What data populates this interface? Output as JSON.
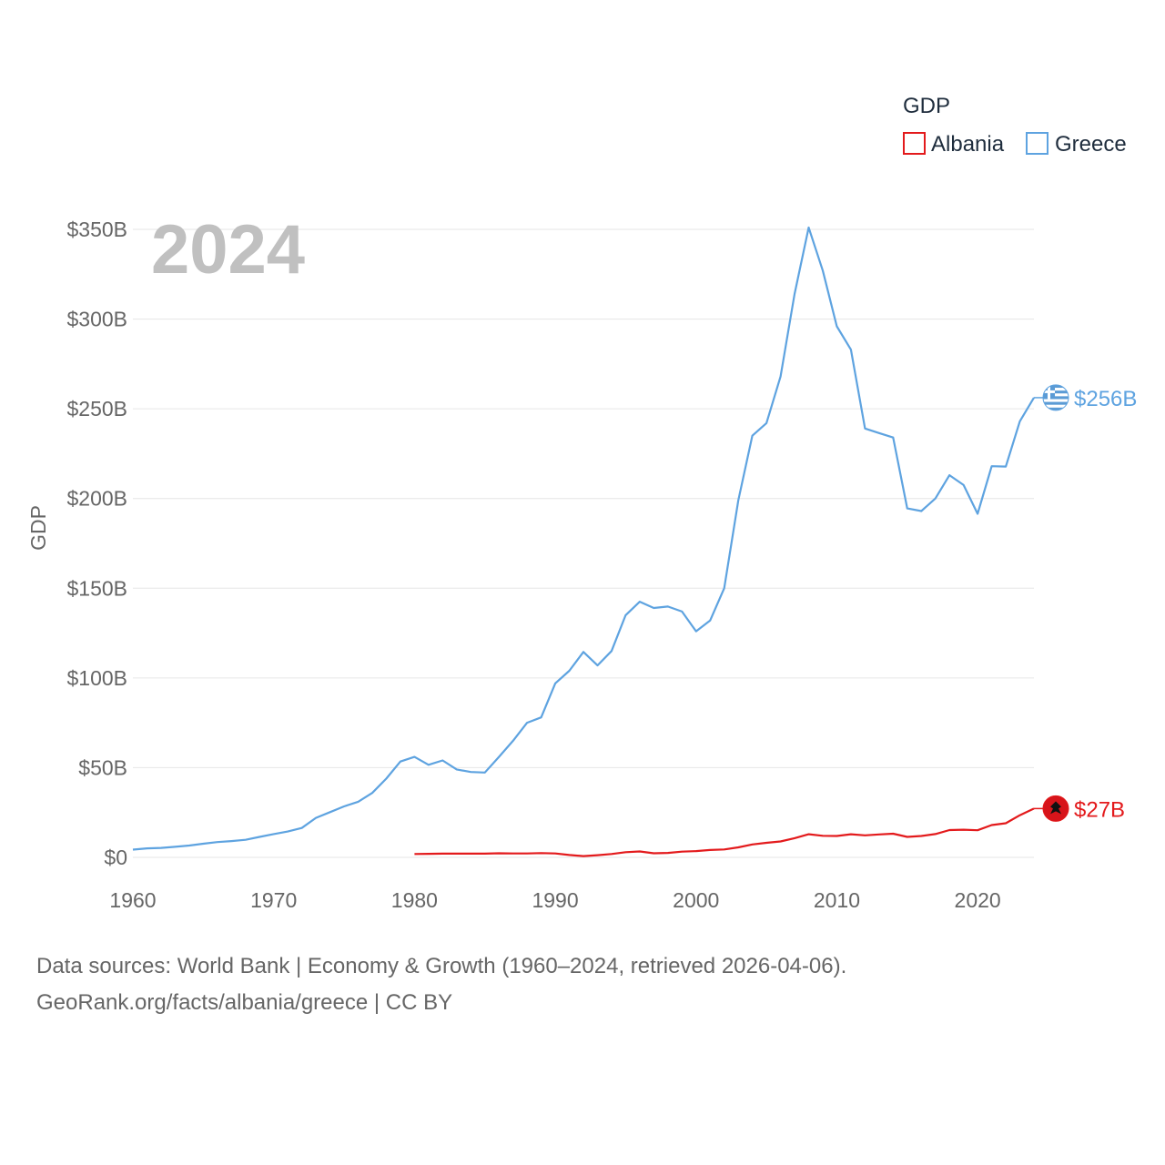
{
  "chart_data": {
    "type": "line",
    "title": "",
    "year_badge": "2024",
    "xlabel": "",
    "ylabel": "GDP",
    "xlim": [
      1960,
      2024
    ],
    "ylim": [
      0,
      350
    ],
    "x_ticks": [
      1960,
      1970,
      1980,
      1990,
      2000,
      2010,
      2020
    ],
    "y_ticks": [
      0,
      50,
      100,
      150,
      200,
      250,
      300,
      350
    ],
    "y_tick_labels": [
      "$0",
      "$50B",
      "$100B",
      "$150B",
      "$200B",
      "$250B",
      "$300B",
      "$350B"
    ],
    "grid": true,
    "legend": {
      "title": "GDP",
      "position": "top-right"
    },
    "series": [
      {
        "name": "Albania",
        "color": "#e31a1c",
        "end_label": "$27B",
        "flag": "albania-flag",
        "x": [
          1980,
          1981,
          1982,
          1983,
          1984,
          1985,
          1986,
          1987,
          1988,
          1989,
          1990,
          1991,
          1992,
          1993,
          1994,
          1995,
          1996,
          1997,
          1998,
          1999,
          2000,
          2001,
          2002,
          2003,
          2004,
          2005,
          2006,
          2007,
          2008,
          2009,
          2010,
          2011,
          2012,
          2013,
          2014,
          2015,
          2016,
          2017,
          2018,
          2019,
          2020,
          2021,
          2022,
          2023,
          2024
        ],
        "values": [
          1.9,
          2.0,
          2.1,
          2.1,
          2.1,
          2.1,
          2.3,
          2.2,
          2.2,
          2.4,
          2.2,
          1.3,
          0.7,
          1.2,
          1.9,
          2.9,
          3.3,
          2.3,
          2.5,
          3.2,
          3.5,
          4.1,
          4.4,
          5.6,
          7.2,
          8.1,
          8.9,
          10.7,
          12.9,
          12.0,
          11.9,
          12.9,
          12.3,
          12.8,
          13.2,
          11.4,
          11.9,
          13.0,
          15.2,
          15.4,
          15.1,
          18.0,
          19.0,
          23.5,
          27.2
        ]
      },
      {
        "name": "Greece",
        "color": "#5ea3e0",
        "end_label": "$256B",
        "flag": "greece-flag",
        "x": [
          1960,
          1961,
          1962,
          1963,
          1964,
          1965,
          1966,
          1967,
          1968,
          1969,
          1970,
          1971,
          1972,
          1973,
          1974,
          1975,
          1976,
          1977,
          1978,
          1979,
          1980,
          1981,
          1982,
          1983,
          1984,
          1985,
          1986,
          1987,
          1988,
          1989,
          1990,
          1991,
          1992,
          1993,
          1994,
          1995,
          1996,
          1997,
          1998,
          1999,
          2000,
          2001,
          2002,
          2003,
          2004,
          2005,
          2006,
          2007,
          2008,
          2009,
          2010,
          2011,
          2012,
          2013,
          2014,
          2015,
          2016,
          2017,
          2018,
          2019,
          2020,
          2021,
          2022,
          2023,
          2024
        ],
        "values": [
          4.3,
          5.0,
          5.3,
          5.9,
          6.6,
          7.6,
          8.5,
          9.1,
          9.8,
          11.4,
          13.0,
          14.4,
          16.4,
          22.0,
          25.2,
          28.4,
          31.0,
          35.9,
          43.9,
          53.4,
          56.0,
          51.6,
          54.0,
          49.0,
          47.6,
          47.3,
          56.0,
          65.0,
          75.0,
          78.0,
          97.0,
          104.0,
          114.5,
          107.0,
          115.0,
          135.0,
          142.5,
          139.0,
          139.8,
          137.0,
          126.0,
          132.0,
          150.0,
          199.0,
          235.0,
          242.0,
          268.0,
          314.0,
          351.0,
          327.0,
          296.0,
          283.0,
          239.0,
          236.5,
          234.0,
          194.5,
          193.0,
          200.0,
          213.0,
          207.5,
          191.5,
          218.0,
          217.8,
          243.0,
          256.2
        ]
      }
    ]
  },
  "footer": {
    "line1": "Data sources: World Bank | Economy & Growth (1960–2024, retrieved 2026-04-06).",
    "line2": "GeoRank.org/facts/albania/greece | CC BY"
  }
}
